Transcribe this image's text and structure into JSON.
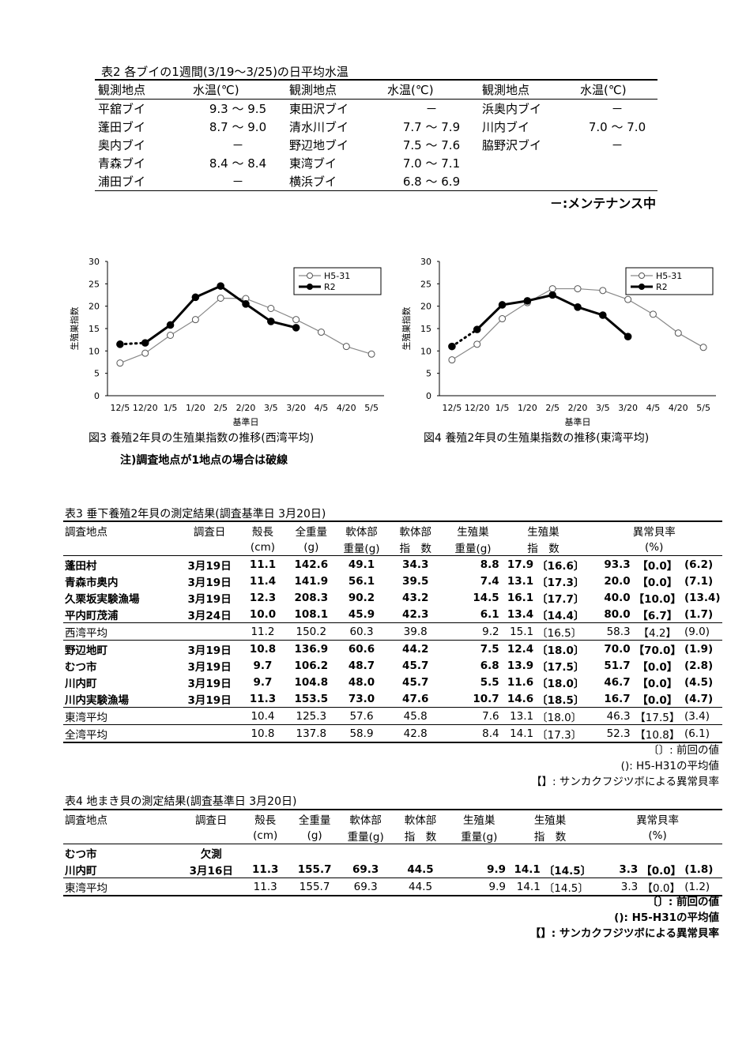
{
  "table2": {
    "title": "表2  各ブイの1週間(3/19～3/25)の日平均水温",
    "headers": [
      "観測地点",
      "水温(℃)",
      "観測地点",
      "水温(℃)",
      "観測地点",
      "水温(℃)"
    ],
    "rows": [
      [
        "平舘ブイ",
        "9.3 ～ 9.5",
        "東田沢ブイ",
        "－",
        "浜奥内ブイ",
        "－"
      ],
      [
        "蓬田ブイ",
        "8.7 ～ 9.0",
        "清水川ブイ",
        "7.7 ～ 7.9",
        "川内ブイ",
        "7.0 ～ 7.0"
      ],
      [
        "奥内ブイ",
        "－",
        "野辺地ブイ",
        "7.5 ～ 7.6",
        "脇野沢ブイ",
        "－"
      ],
      [
        "青森ブイ",
        "8.4 ～ 8.4",
        "東湾ブイ",
        "7.0 ～ 7.1",
        "",
        ""
      ],
      [
        "浦田ブイ",
        "－",
        "横浜ブイ",
        "6.8 ～ 6.9",
        "",
        ""
      ]
    ],
    "note": "－:メンテナンス中"
  },
  "chart_data": [
    {
      "type": "line",
      "title": "図3  養殖2年貝の生殖巣指数の推移(西湾平均)",
      "xlabel": "基準日",
      "ylabel": "生殖巣指数",
      "categories": [
        "12/5",
        "12/20",
        "1/5",
        "1/20",
        "2/5",
        "2/20",
        "3/5",
        "3/20",
        "4/5",
        "4/20",
        "5/5"
      ],
      "ylim": [
        0,
        30
      ],
      "yticks": [
        "0",
        "5",
        "10",
        "15",
        "20",
        "25",
        "30"
      ],
      "series": [
        {
          "name": "H5-31",
          "values": [
            7.3,
            9.5,
            13.5,
            17,
            21.8,
            21.7,
            19.5,
            17,
            14.2,
            11,
            9.3
          ]
        },
        {
          "name": "R2",
          "values": [
            11.5,
            11.8,
            15.8,
            22,
            24.5,
            20.5,
            16.6,
            15.2,
            null,
            null,
            null
          ]
        }
      ],
      "legend": "top-right"
    },
    {
      "type": "line",
      "title": "図4  養殖2年貝の生殖巣指数の推移(東湾平均)",
      "xlabel": "基準日",
      "ylabel": "生殖巣指数",
      "categories": [
        "12/5",
        "12/20",
        "1/5",
        "1/20",
        "2/5",
        "2/20",
        "3/5",
        "3/20",
        "4/5",
        "4/20",
        "5/5"
      ],
      "ylim": [
        0,
        30
      ],
      "yticks": [
        "0",
        "5",
        "10",
        "15",
        "20",
        "25",
        "30"
      ],
      "series": [
        {
          "name": "H5-31",
          "values": [
            8,
            11.5,
            17.2,
            20.8,
            23.9,
            23.9,
            23.5,
            21.5,
            18.2,
            14,
            10.8
          ]
        },
        {
          "name": "R2",
          "values": [
            11,
            14.8,
            20.3,
            21.2,
            22.5,
            19.8,
            18,
            13.2,
            null,
            null,
            null
          ]
        }
      ],
      "legend": "top-right"
    }
  ],
  "figure_note": "注)調査地点が1地点の場合は破線",
  "table3": {
    "title": "表3  垂下養殖2年貝の測定結果(調査基準日  3月20日)",
    "headers_top": [
      "調査地点",
      "調査日",
      "殻長",
      "全重量",
      "軟体部",
      "軟体部",
      "生殖巣",
      "生殖巣",
      "異常貝率"
    ],
    "headers_bottom": [
      "",
      "",
      "(cm)",
      "(g)",
      "重量(g)",
      "指　数",
      "重量(g)",
      "指　数",
      "(%)"
    ],
    "rows": [
      {
        "site": "蓬田村",
        "date": "3月19日",
        "len": "11.1",
        "wt": "142.6",
        "sw": "49.1",
        "si": "34.3",
        "gw": "8.8",
        "gi": "17.9",
        "gi_prev": "〔16.6〕",
        "ab": "93.3",
        "ab_prev": "【0.0】",
        "ab_avg": "(6.2)"
      },
      {
        "site": "青森市奥内",
        "date": "3月19日",
        "len": "11.4",
        "wt": "141.9",
        "sw": "56.1",
        "si": "39.5",
        "gw": "7.4",
        "gi": "13.1",
        "gi_prev": "〔17.3〕",
        "ab": "20.0",
        "ab_prev": "【0.0】",
        "ab_avg": "(7.1)"
      },
      {
        "site": "久栗坂実験漁場",
        "date": "3月19日",
        "len": "12.3",
        "wt": "208.3",
        "sw": "90.2",
        "si": "43.2",
        "gw": "14.5",
        "gi": "16.1",
        "gi_prev": "〔17.7〕",
        "ab": "40.0",
        "ab_prev": "【10.0】",
        "ab_avg": "(13.4)"
      },
      {
        "site": "平内町茂浦",
        "date": "3月24日",
        "len": "10.0",
        "wt": "108.1",
        "sw": "45.9",
        "si": "42.3",
        "gw": "6.1",
        "gi": "13.4",
        "gi_prev": "〔14.4〕",
        "ab": "80.0",
        "ab_prev": "【6.7】",
        "ab_avg": "(1.7)"
      },
      {
        "site": "西湾平均",
        "date": "",
        "len": "11.2",
        "wt": "150.2",
        "sw": "60.3",
        "si": "39.8",
        "gw": "9.2",
        "gi": "15.1",
        "gi_prev": "〔16.5〕",
        "ab": "58.3",
        "ab_prev": "【4.2】",
        "ab_avg": "(9.0)",
        "avg": true
      },
      {
        "site": "野辺地町",
        "date": "3月19日",
        "len": "10.8",
        "wt": "136.9",
        "sw": "60.6",
        "si": "44.2",
        "gw": "7.5",
        "gi": "12.4",
        "gi_prev": "〔18.0〕",
        "ab": "70.0",
        "ab_prev": "【70.0】",
        "ab_avg": "(1.9)"
      },
      {
        "site": "むつ市",
        "date": "3月19日",
        "len": "9.7",
        "wt": "106.2",
        "sw": "48.7",
        "si": "45.7",
        "gw": "6.8",
        "gi": "13.9",
        "gi_prev": "〔17.5〕",
        "ab": "51.7",
        "ab_prev": "【0.0】",
        "ab_avg": "(2.8)"
      },
      {
        "site": "川内町",
        "date": "3月19日",
        "len": "9.7",
        "wt": "104.8",
        "sw": "48.0",
        "si": "45.7",
        "gw": "5.5",
        "gi": "11.6",
        "gi_prev": "〔18.0〕",
        "ab": "46.7",
        "ab_prev": "【0.0】",
        "ab_avg": "(4.5)"
      },
      {
        "site": "川内実験漁場",
        "date": "3月19日",
        "len": "11.3",
        "wt": "153.5",
        "sw": "73.0",
        "si": "47.6",
        "gw": "10.7",
        "gi": "14.6",
        "gi_prev": "〔18.5〕",
        "ab": "16.7",
        "ab_prev": "【0.0】",
        "ab_avg": "(4.7)"
      },
      {
        "site": "東湾平均",
        "date": "",
        "len": "10.4",
        "wt": "125.3",
        "sw": "57.6",
        "si": "45.8",
        "gw": "7.6",
        "gi": "13.1",
        "gi_prev": "〔18.0〕",
        "ab": "46.3",
        "ab_prev": "【17.5】",
        "ab_avg": "(3.4)",
        "avg": true
      },
      {
        "site": "全湾平均",
        "date": "",
        "len": "10.8",
        "wt": "137.8",
        "sw": "58.9",
        "si": "42.8",
        "gw": "8.4",
        "gi": "14.1",
        "gi_prev": "〔17.3〕",
        "ab": "52.3",
        "ab_prev": "【10.8】",
        "ab_avg": "(6.1)",
        "avg": true,
        "last": true
      }
    ],
    "notes": [
      "〔〕: 前回の値",
      "(): H5-H31の平均値",
      "【】: サンカクフジツボによる異常貝率"
    ]
  },
  "table4": {
    "title": "表4  地まき貝の測定結果(調査基準日  3月20日)",
    "headers_top": [
      "調査地点",
      "調査日",
      "殻長",
      "全重量",
      "軟体部",
      "軟体部",
      "生殖巣",
      "生殖巣",
      "異常貝率"
    ],
    "headers_bottom": [
      "",
      "",
      "(cm)",
      "(g)",
      "重量(g)",
      "指　数",
      "重量(g)",
      "指　数",
      "(%)"
    ],
    "rows": [
      {
        "site": "むつ市",
        "date": "欠測",
        "len": "",
        "wt": "",
        "sw": "",
        "si": "",
        "gw": "",
        "gi": "",
        "gi_prev": "",
        "ab": "",
        "ab_prev": "",
        "ab_avg": ""
      },
      {
        "site": "川内町",
        "date": "3月16日",
        "len": "11.3",
        "wt": "155.7",
        "sw": "69.3",
        "si": "44.5",
        "gw": "9.9",
        "gi": "14.1",
        "gi_prev": "〔14.5〕",
        "ab": "3.3",
        "ab_prev": "【0.0】",
        "ab_avg": "(1.8)"
      },
      {
        "site": "東湾平均",
        "date": "",
        "len": "11.3",
        "wt": "155.7",
        "sw": "69.3",
        "si": "44.5",
        "gw": "9.9",
        "gi": "14.1",
        "gi_prev": "〔14.5〕",
        "ab": "3.3",
        "ab_prev": "【0.0】",
        "ab_avg": "(1.2)",
        "avg": true,
        "last": true
      }
    ],
    "notes": [
      "〔〕: 前回の値",
      "(): H5-H31の平均値",
      "【】: サンカクフジツボによる異常貝率"
    ]
  }
}
